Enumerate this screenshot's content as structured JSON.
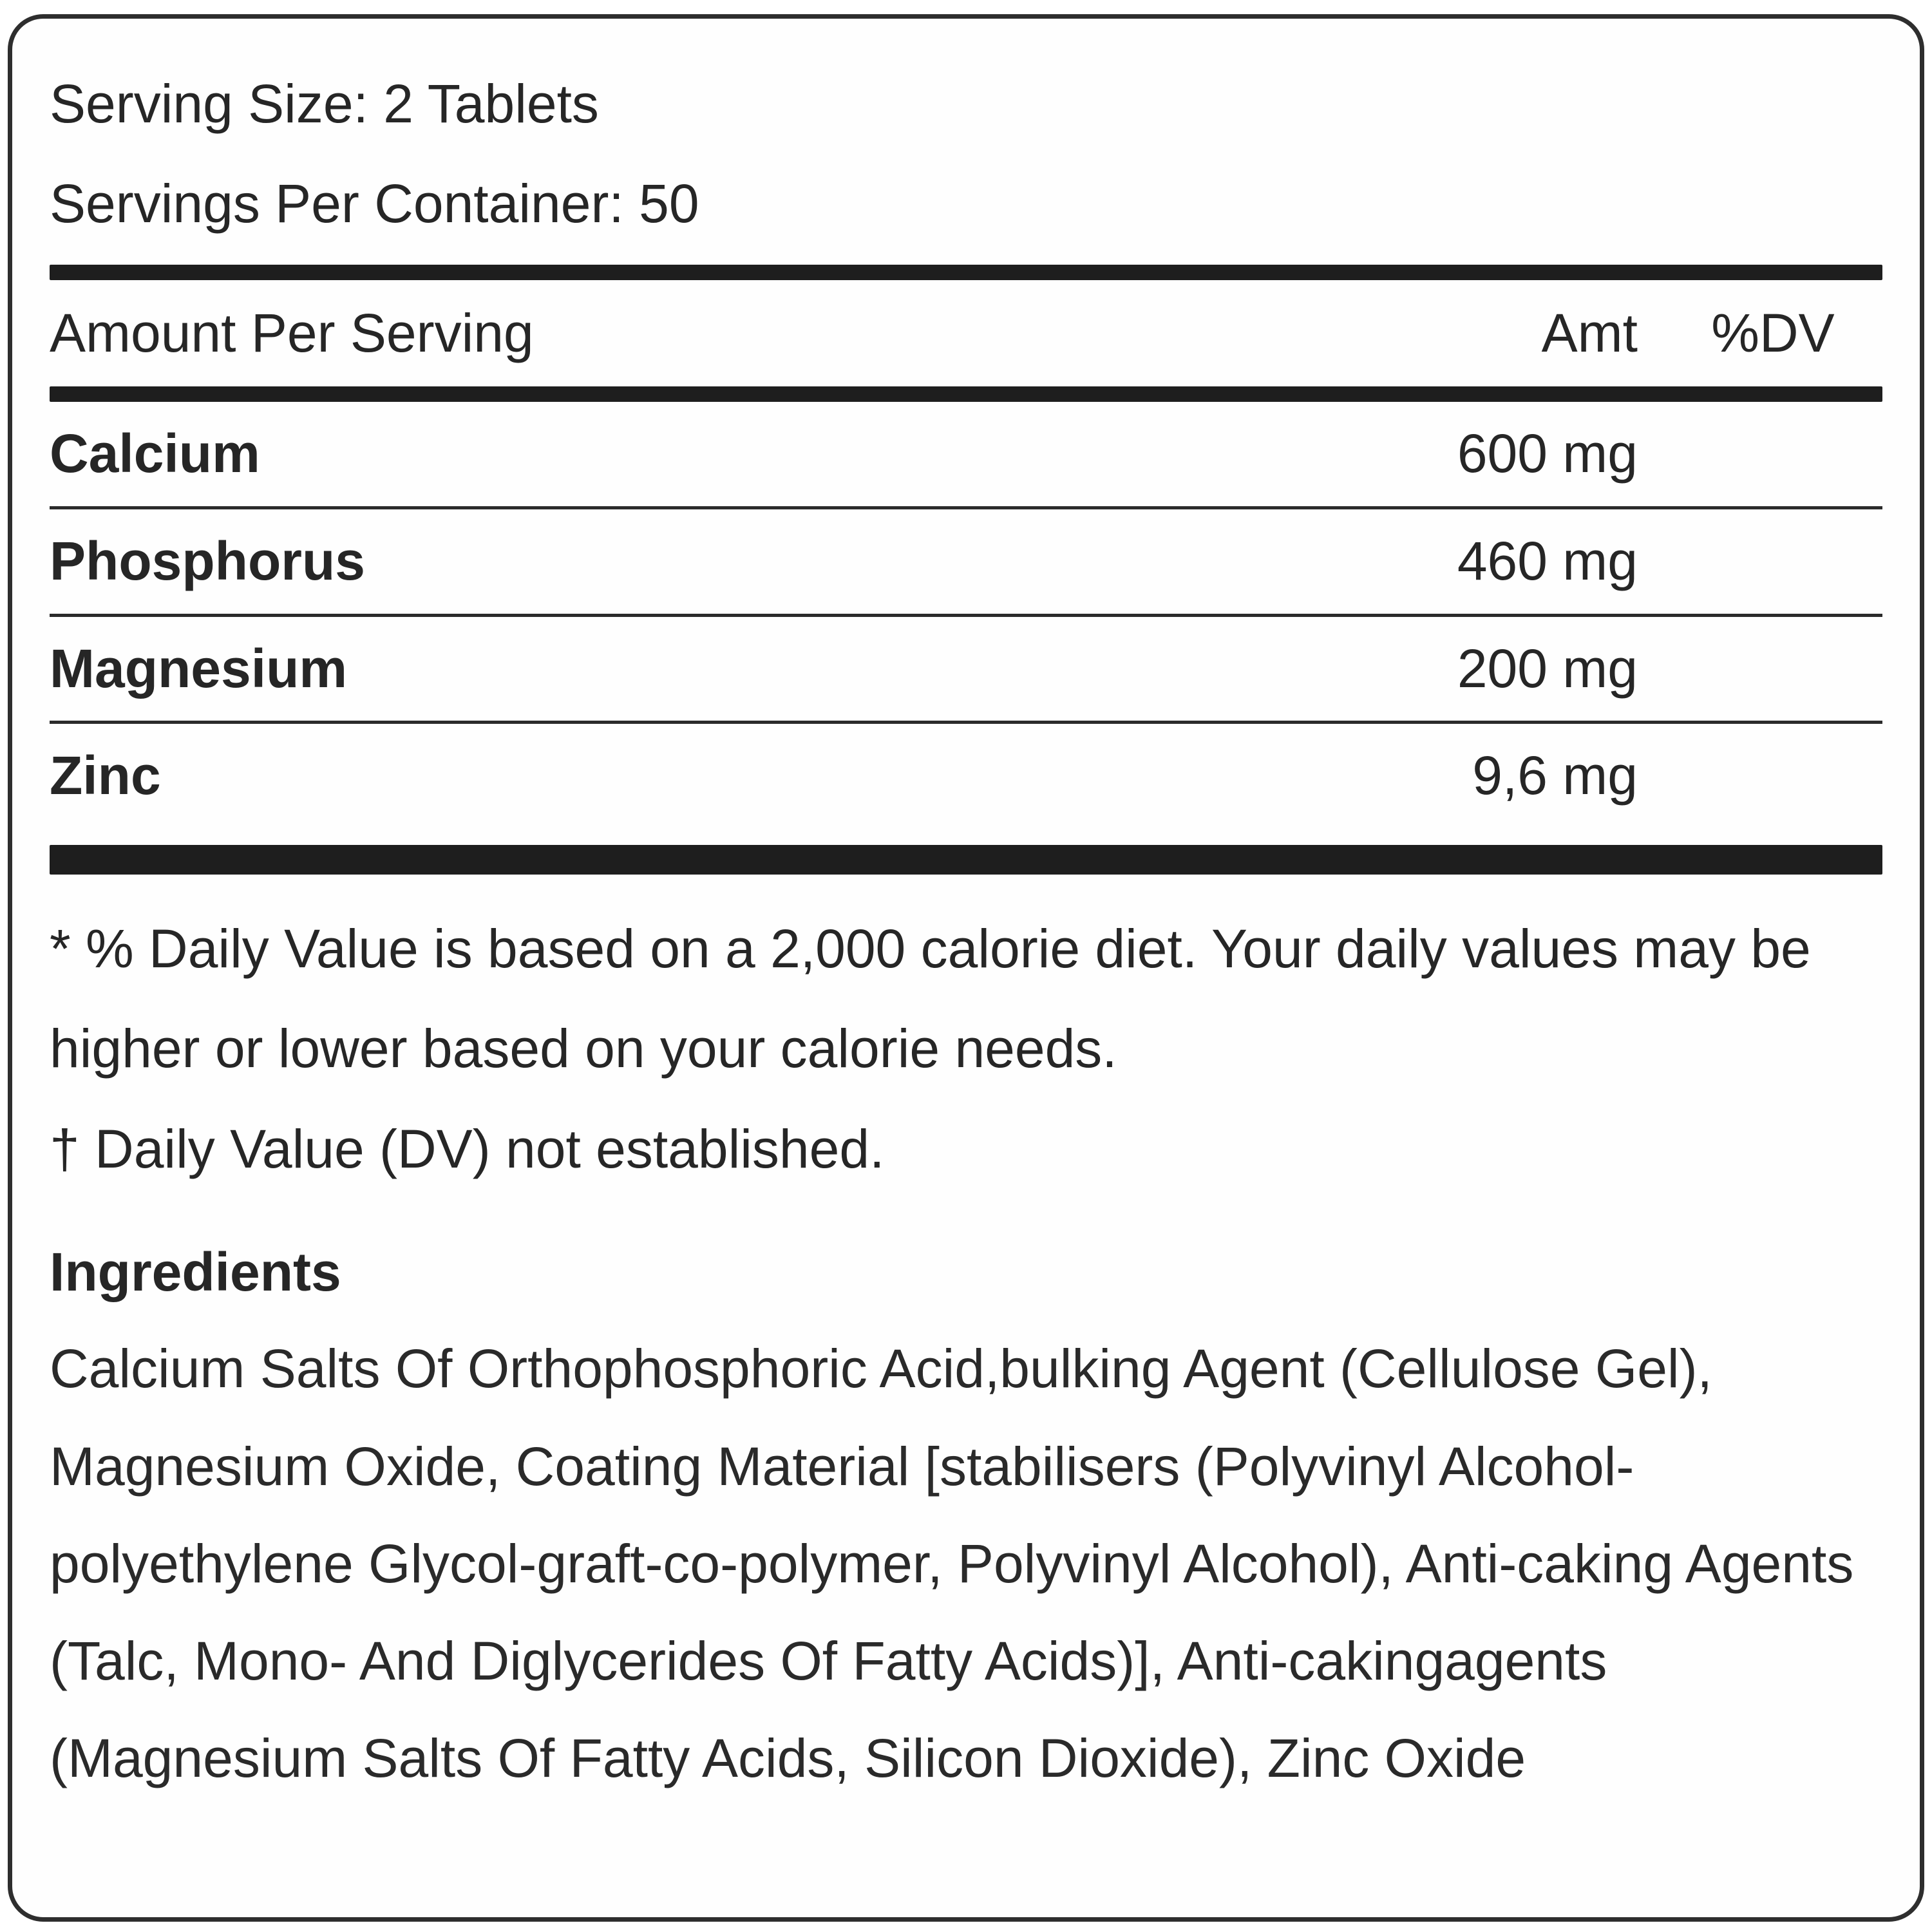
{
  "label": {
    "serving_size_line": "Serving Size: 2 Tablets",
    "servings_per_container_line": "Servings Per Container: 50",
    "table": {
      "header": {
        "amount_per_serving": "Amount Per Serving",
        "amt": "Amt",
        "dv": "%DV"
      },
      "rows": [
        {
          "name": "Calcium",
          "amt": "600 mg",
          "dv": ""
        },
        {
          "name": "Phosphorus",
          "amt": "460 mg",
          "dv": ""
        },
        {
          "name": "Magnesium",
          "amt": "200 mg",
          "dv": ""
        },
        {
          "name": "Zinc",
          "amt": "9,6 mg",
          "dv": ""
        }
      ]
    },
    "footnotes": {
      "daily_value_note": "* % Daily Value is based on a 2,000 calorie diet. Your daily values may be higher or lower based on your calorie needs.",
      "dv_not_established_note": "† Daily Value (DV) not established."
    },
    "ingredients": {
      "heading": "Ingredients",
      "text": "Calcium Salts Of Orthophosphoric Acid,bulking Agent (Cellulose Gel), Magnesium Oxide, Coating Material [stabilisers (Polyvinyl Alcohol-polyethylene Glycol-graft-co-polymer, Polyvinyl Alcohol), Anti-caking Agents (Talc, Mono- And Diglycerides Of Fatty Acids)], Anti-cakingagents (Magnesium Salts Of Fatty Acids, Silicon Dioxide), Zinc Oxide"
    },
    "colors": {
      "text": "#262626",
      "bar": "#1e1e1e",
      "border": "#2e2e2e",
      "background": "#ffffff"
    }
  }
}
